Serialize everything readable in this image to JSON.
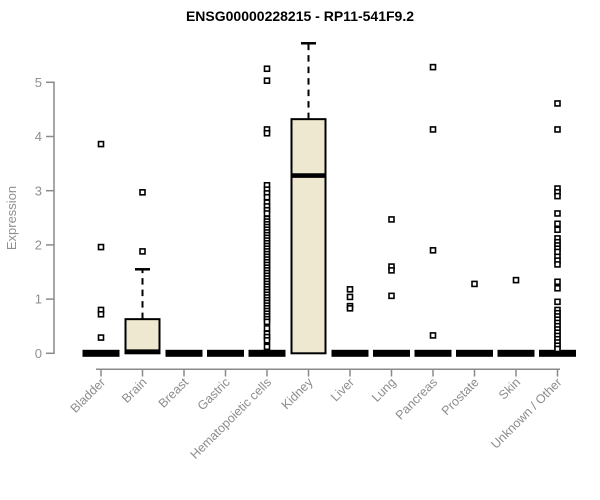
{
  "chart_data": {
    "type": "boxplot",
    "title": "ENSG00000228215 - RP11-541F9.2",
    "xlabel": "",
    "ylabel": "Expression",
    "ylim": [
      0,
      5.8
    ],
    "yticks": [
      0,
      1,
      2,
      3,
      4,
      5
    ],
    "grid": false,
    "legend": "none",
    "box_fill": "#ede8cf",
    "box_stroke": "#000000",
    "axis_color": "#8a8a8a",
    "tick_label_color": "#8f8f8f",
    "category_label_color": "#8c8c8c",
    "outlier_marker": "open-square",
    "categories": [
      "Bladder",
      "Brain",
      "Breast",
      "Gastric",
      "Hematopoietic cells",
      "Kidney",
      "Liver",
      "Lung",
      "Pancreas",
      "Prostate",
      "Skin",
      "Unknown / Other"
    ],
    "boxes": [
      {
        "category": "Bladder",
        "q1": 0,
        "median": 0,
        "q3": 0,
        "whisker_low": 0,
        "whisker_high": 0,
        "outliers": [
          3.86,
          1.96,
          0.8,
          0.72,
          0.29
        ]
      },
      {
        "category": "Brain",
        "q1": 0,
        "median": 0.03,
        "q3": 0.63,
        "whisker_low": 0,
        "whisker_high": 1.55,
        "outliers": [
          2.97,
          1.88
        ]
      },
      {
        "category": "Breast",
        "q1": 0,
        "median": 0,
        "q3": 0,
        "whisker_low": 0,
        "whisker_high": 0,
        "outliers": []
      },
      {
        "category": "Gastric",
        "q1": 0,
        "median": 0,
        "q3": 0,
        "whisker_low": 0,
        "whisker_high": 0,
        "outliers": []
      },
      {
        "category": "Hematopoietic cells",
        "q1": 0,
        "median": 0,
        "q3": 0,
        "whisker_low": 0,
        "whisker_high": 0,
        "outliers": [
          5.25,
          5.03,
          4.13,
          4.06,
          3.1,
          3.02,
          2.95,
          2.88,
          2.78,
          2.71,
          2.64,
          2.58,
          2.48,
          2.43,
          2.38,
          2.33,
          2.28,
          2.23,
          2.18,
          2.13,
          2.08,
          2.03,
          1.98,
          1.93,
          1.88,
          1.83,
          1.78,
          1.73,
          1.68,
          1.63,
          1.58,
          1.53,
          1.48,
          1.43,
          1.38,
          1.33,
          1.28,
          1.23,
          1.18,
          1.13,
          1.08,
          1.03,
          0.98,
          0.93,
          0.88,
          0.83,
          0.78,
          0.73,
          0.68,
          0.63,
          0.58,
          0.46,
          0.36,
          0.3,
          0.24,
          0.12
        ]
      },
      {
        "category": "Kidney",
        "q1": 0,
        "median": 3.28,
        "q3": 4.32,
        "whisker_low": 0,
        "whisker_high": 5.72,
        "outliers": []
      },
      {
        "category": "Liver",
        "q1": 0,
        "median": 0,
        "q3": 0,
        "whisker_low": 0,
        "whisker_high": 0,
        "outliers": [
          1.18,
          1.04,
          0.87,
          0.83
        ]
      },
      {
        "category": "Lung",
        "q1": 0,
        "median": 0,
        "q3": 0,
        "whisker_low": 0,
        "whisker_high": 0,
        "outliers": [
          2.47,
          1.6,
          1.53,
          1.06
        ]
      },
      {
        "category": "Pancreas",
        "q1": 0,
        "median": 0,
        "q3": 0,
        "whisker_low": 0,
        "whisker_high": 0,
        "outliers": [
          5.28,
          4.13,
          1.9,
          0.33
        ]
      },
      {
        "category": "Prostate",
        "q1": 0,
        "median": 0,
        "q3": 0,
        "whisker_low": 0,
        "whisker_high": 0,
        "outliers": [
          1.28
        ]
      },
      {
        "category": "Skin",
        "q1": 0,
        "median": 0,
        "q3": 0,
        "whisker_low": 0,
        "whisker_high": 0,
        "outliers": [
          1.35
        ]
      },
      {
        "category": "Unknown / Other",
        "q1": 0,
        "median": 0,
        "q3": 0,
        "whisker_low": 0,
        "whisker_high": 0,
        "outliers": [
          4.61,
          4.13,
          3.04,
          2.97,
          2.9,
          2.58,
          2.39,
          2.28,
          2.12,
          2.05,
          1.99,
          1.93,
          1.87,
          1.78,
          1.71,
          1.64,
          1.32,
          1.2,
          0.95,
          0.8,
          0.74,
          0.68,
          0.62,
          0.56,
          0.5,
          0.44,
          0.38,
          0.32,
          0.26,
          0.2,
          0.14,
          0.08
        ]
      }
    ]
  }
}
